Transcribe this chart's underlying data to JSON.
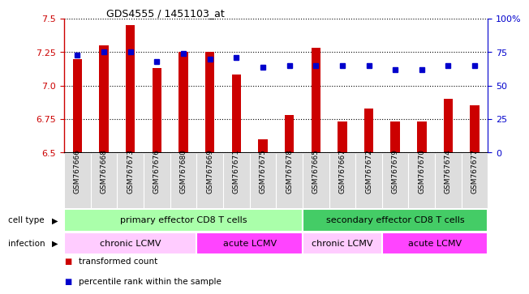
{
  "title": "GDS4555 / 1451103_at",
  "samples": [
    "GSM767666",
    "GSM767668",
    "GSM767673",
    "GSM767676",
    "GSM767680",
    "GSM767669",
    "GSM767671",
    "GSM767675",
    "GSM767678",
    "GSM767665",
    "GSM767667",
    "GSM767672",
    "GSM767679",
    "GSM767670",
    "GSM767674",
    "GSM767677"
  ],
  "transformed_count": [
    7.2,
    7.3,
    7.45,
    7.13,
    7.25,
    7.25,
    7.08,
    6.6,
    6.78,
    7.28,
    6.73,
    6.83,
    6.73,
    6.73,
    6.9,
    6.85
  ],
  "percentile_rank": [
    73,
    75,
    75,
    68,
    74,
    70,
    71,
    64,
    65,
    65,
    65,
    65,
    62,
    62,
    65,
    65
  ],
  "ylim_left": [
    6.5,
    7.5
  ],
  "ylim_right": [
    0,
    100
  ],
  "yticks_left": [
    6.5,
    6.75,
    7.0,
    7.25,
    7.5
  ],
  "yticks_right": [
    0,
    25,
    50,
    75,
    100
  ],
  "bar_color": "#cc0000",
  "dot_color": "#0000cc",
  "bar_width": 0.35,
  "cell_type_groups": [
    {
      "label": "primary effector CD8 T cells",
      "start": 0,
      "end": 8,
      "color": "#aaffaa"
    },
    {
      "label": "secondary effector CD8 T cells",
      "start": 9,
      "end": 15,
      "color": "#44cc66"
    }
  ],
  "infection_groups": [
    {
      "label": "chronic LCMV",
      "start": 0,
      "end": 4,
      "color": "#ffccff"
    },
    {
      "label": "acute LCMV",
      "start": 5,
      "end": 8,
      "color": "#ff44ff"
    },
    {
      "label": "chronic LCMV",
      "start": 9,
      "end": 11,
      "color": "#ffccff"
    },
    {
      "label": "acute LCMV",
      "start": 12,
      "end": 15,
      "color": "#ff44ff"
    }
  ],
  "legend_items": [
    {
      "label": "transformed count",
      "color": "#cc0000"
    },
    {
      "label": "percentile rank within the sample",
      "color": "#0000cc"
    }
  ],
  "tick_bg_color": "#dddddd",
  "background_color": "#ffffff"
}
